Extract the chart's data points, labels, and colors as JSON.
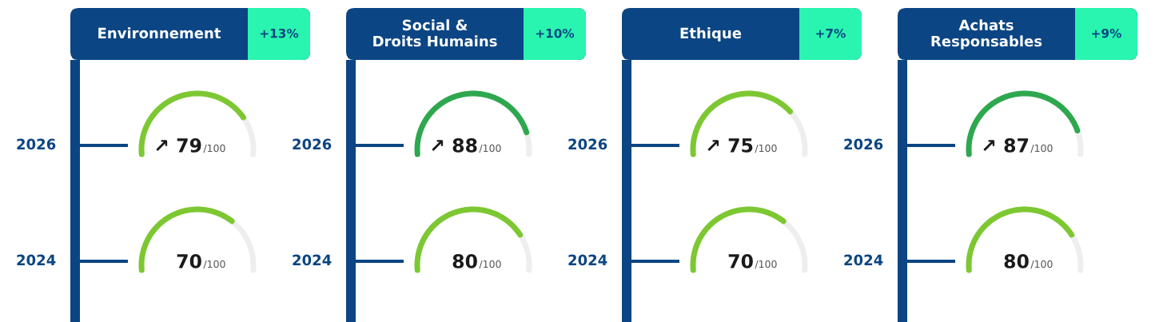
{
  "chart_data": [
    {
      "type": "other",
      "title": "Environnement",
      "annotations": [
        "+13%"
      ],
      "categories": [
        "2026",
        "2024"
      ],
      "values": [
        79,
        70
      ],
      "value_labels": [
        "↗ 79/100",
        "70/100"
      ],
      "colors": [
        "#7dc832",
        "#7dc832"
      ]
    },
    {
      "type": "other",
      "title": "Social &\nDroits Humains",
      "annotations": [
        "+10%"
      ],
      "categories": [
        "2026",
        "2024"
      ],
      "values": [
        88,
        80
      ],
      "value_labels": [
        "↗ 88/100",
        "80/100"
      ],
      "colors": [
        "#2ea84f",
        "#7dc832"
      ]
    },
    {
      "type": "other",
      "title": "Ethique",
      "annotations": [
        "+7%"
      ],
      "categories": [
        "2026",
        "2024"
      ],
      "values": [
        75,
        70
      ],
      "value_labels": [
        "↗ 75/100",
        "70/100"
      ],
      "colors": [
        "#7dc832",
        "#7dc832"
      ]
    },
    {
      "type": "other",
      "title": "Achats\nResponsables",
      "annotations": [
        "+9%"
      ],
      "categories": [
        "2026",
        "2024"
      ],
      "values": [
        87,
        80
      ],
      "value_labels": [
        "↗ 87/100",
        "80/100"
      ],
      "colors": [
        "#2ea84f",
        "#7dc832"
      ]
    }
  ]
}
